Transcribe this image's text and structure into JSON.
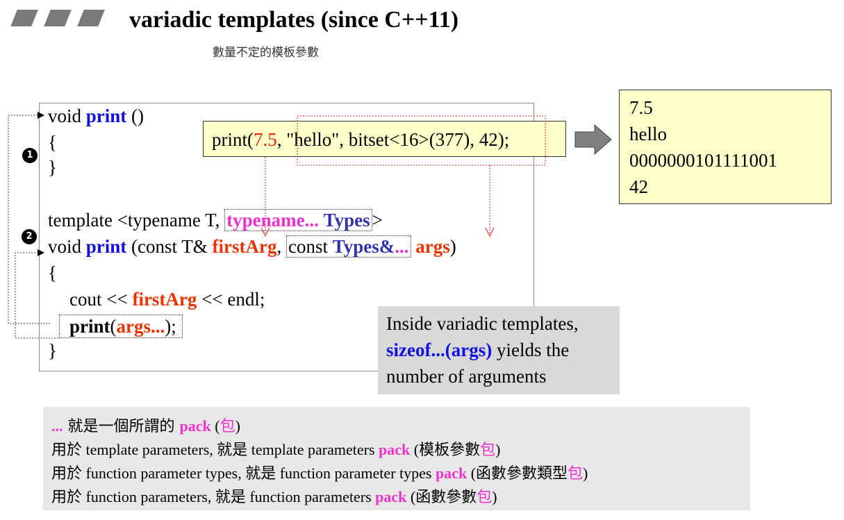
{
  "title": "variadic templates (since C++11)",
  "subtitle": "數量不定的模板參數",
  "badges": [
    "1",
    "2"
  ],
  "code": {
    "l1_void": "void ",
    "l1_print": "print",
    "l1_rest": " ()",
    "l2": "{",
    "l3": "}",
    "l4_a": "template <typename T, ",
    "l4_typename": "typename...",
    "l4_space": " ",
    "l4_types": "Types",
    "l4_end": ">",
    "l5_void": "void ",
    "l5_print": "print",
    "l5_a": " (const T& ",
    "l5_first": "firstArg",
    "l5_comma": ", ",
    "l5_const": "const ",
    "l5_types": "Types",
    "l5_amp": "&",
    "l5_dots": "...",
    "l5_space": " ",
    "l5_args": "args",
    "l5_end": ")",
    "l6": "{",
    "l7_a": "cout << ",
    "l7_first": "firstArg",
    "l7_b": " << endl;",
    "l8_print": "print",
    "l8_paren": "(",
    "l8_args": "args...",
    "l8_end": ");",
    "l9": "}"
  },
  "call": {
    "prefix": "print(",
    "v1": "7.5",
    "comma": ", ",
    "rest": "\"hello\", bitset<16>(377), 42",
    "end": ");"
  },
  "output": [
    "7.5",
    "hello",
    "0000000101111001",
    "42"
  ],
  "note": {
    "line1": "Inside variadic templates,",
    "sizeof": "sizeof...(args)",
    "line2_rest": " yields the",
    "line3": "number of arguments"
  },
  "explain": {
    "l1_dots": "...",
    "l1_a": " 就是一個所謂的 ",
    "l1_pack": "pack",
    "l1_b": " (",
    "l1_bao": "包",
    "l1_c": ")",
    "l2_a": "用於",
    "l2_b": " template parameters, ",
    "l2_c": "就是",
    "l2_d": " template parameters ",
    "l2_pack": "pack",
    "l2_e": " (",
    "l2_f": "模板參數",
    "l2_bao": "包",
    "l2_g": ")",
    "l3_a": "用於",
    "l3_b": " function parameter types, ",
    "l3_c": "就是",
    "l3_d": " function parameter types ",
    "l3_pack": "pack",
    "l3_e": " (",
    "l3_f": "函數參數類型",
    "l3_bao": "包",
    "l3_g": ")",
    "l4_a": "用於",
    "l4_b": " function parameters, ",
    "l4_c": "就是",
    "l4_d": " function parameters ",
    "l4_pack": "pack",
    "l4_e": " (",
    "l4_f": "函數參數",
    "l4_bao": "包",
    "l4_g": ")"
  },
  "colors": {
    "blue": "#1010e0",
    "red": "#ee3300",
    "magenta": "#ee33cc",
    "note_bg": "#d9d9d9",
    "yellow": "#ffffcc"
  }
}
